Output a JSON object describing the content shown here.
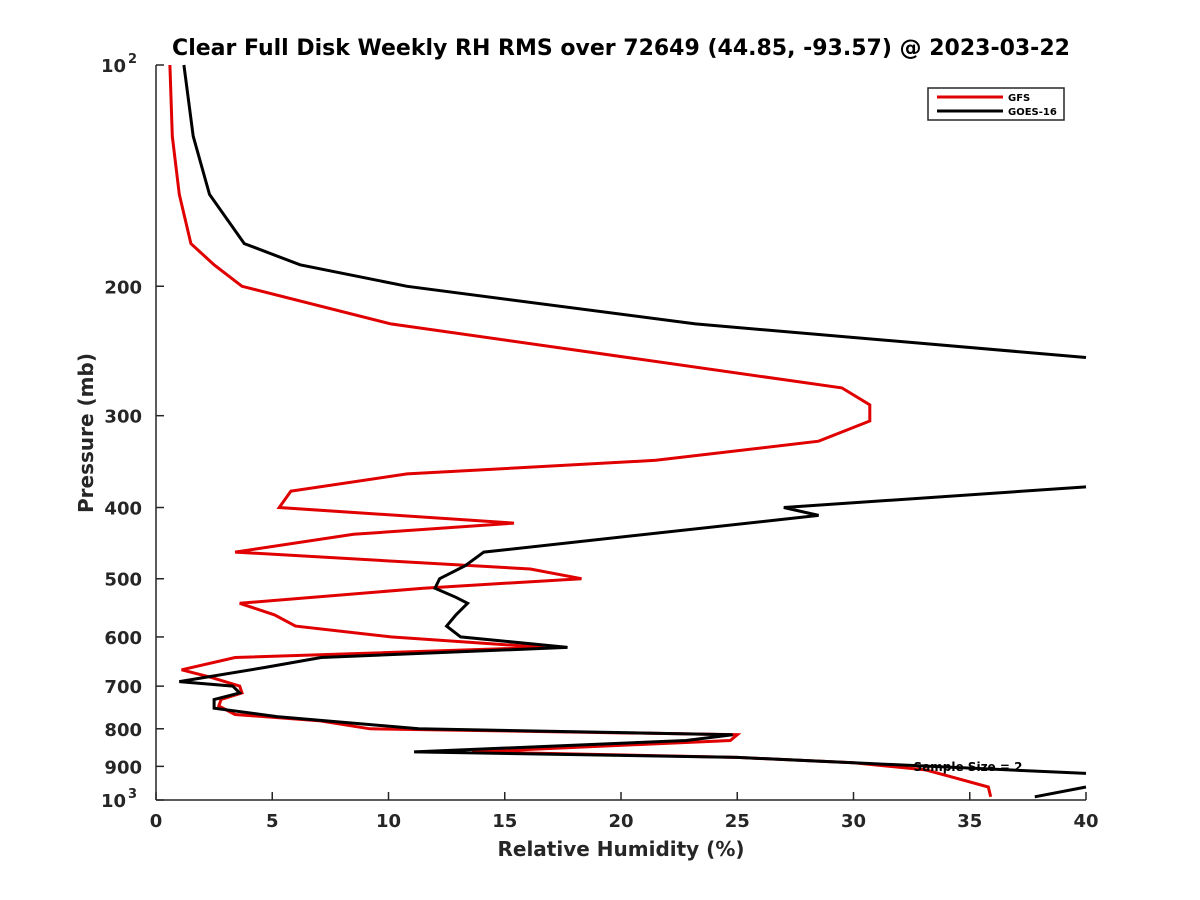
{
  "chart_data": {
    "type": "line",
    "title": "Clear Full Disk Weekly RH RMS over 72649 (44.85, -93.57) @ 2023-03-22",
    "xlabel": "Relative Humidity (%)",
    "ylabel": "Pressure (mb)",
    "xlim": [
      0,
      40
    ],
    "ylim": [
      100,
      1000
    ],
    "y_scale": "log",
    "y_reversed": true,
    "grid": false,
    "legend_position": "top-right",
    "x_ticks": [
      "0",
      "5",
      "10",
      "15",
      "20",
      "25",
      "30",
      "35",
      "40"
    ],
    "y_ticks": [
      {
        "value": 100,
        "base": "10",
        "exp": "2"
      },
      {
        "value": 200,
        "label": "200"
      },
      {
        "value": 300,
        "label": "300"
      },
      {
        "value": 400,
        "label": "400"
      },
      {
        "value": 500,
        "label": "500"
      },
      {
        "value": 600,
        "label": "600"
      },
      {
        "value": 700,
        "label": "700"
      },
      {
        "value": 800,
        "label": "800"
      },
      {
        "value": 900,
        "label": "900"
      },
      {
        "value": 1000,
        "base": "10",
        "exp": "3"
      }
    ],
    "annotation": "Sample Size = 2",
    "series": [
      {
        "name": "GFS",
        "color": "#e00000",
        "points": [
          [
            0.6,
            100
          ],
          [
            0.7,
            125
          ],
          [
            1.0,
            150
          ],
          [
            1.5,
            175
          ],
          [
            2.5,
            187
          ],
          [
            3.7,
            200
          ],
          [
            10.1,
            225
          ],
          [
            29.5,
            275
          ],
          [
            30.7,
            290
          ],
          [
            30.7,
            305
          ],
          [
            28.5,
            325
          ],
          [
            21.5,
            345
          ],
          [
            10.8,
            360
          ],
          [
            5.8,
            380
          ],
          [
            5.3,
            400
          ],
          [
            15.4,
            420
          ],
          [
            8.5,
            435
          ],
          [
            3.4,
            460
          ],
          [
            16.1,
            485
          ],
          [
            18.3,
            500
          ],
          [
            11.5,
            515
          ],
          [
            3.6,
            540
          ],
          [
            5.1,
            560
          ],
          [
            6.0,
            580
          ],
          [
            10.1,
            600
          ],
          [
            16.7,
            620
          ],
          [
            3.4,
            640
          ],
          [
            1.1,
            665
          ],
          [
            2.3,
            680
          ],
          [
            3.6,
            700
          ],
          [
            3.7,
            715
          ],
          [
            2.8,
            730
          ],
          [
            2.7,
            745
          ],
          [
            3.4,
            765
          ],
          [
            7.0,
            780
          ],
          [
            9.2,
            800
          ],
          [
            25.0,
            815
          ],
          [
            24.7,
            830
          ],
          [
            13.6,
            860
          ],
          [
            25.0,
            875
          ],
          [
            30.0,
            890
          ],
          [
            33.1,
            910
          ],
          [
            34.2,
            930
          ],
          [
            35.8,
            960
          ],
          [
            35.9,
            990
          ]
        ]
      },
      {
        "name": "GOES-16",
        "color": "#000000",
        "segments": [
          [
            [
              1.2,
              100
            ],
            [
              1.6,
              125
            ],
            [
              2.3,
              150
            ],
            [
              3.8,
              175
            ],
            [
              6.2,
              187
            ],
            [
              10.8,
              200
            ],
            [
              23.2,
              225
            ],
            [
              40,
              250
            ]
          ],
          [
            [
              40,
              375
            ],
            [
              27.0,
              400
            ],
            [
              28.5,
              410
            ],
            [
              14.1,
              460
            ],
            [
              13.3,
              480
            ],
            [
              12.2,
              500
            ],
            [
              12.0,
              515
            ],
            [
              12.9,
              530
            ],
            [
              13.4,
              540
            ],
            [
              12.9,
              560
            ],
            [
              12.5,
              580
            ],
            [
              13.1,
              600
            ],
            [
              17.7,
              620
            ],
            [
              7.1,
              640
            ],
            [
              4.7,
              660
            ],
            [
              1.0,
              690
            ],
            [
              3.3,
              700
            ],
            [
              3.6,
              715
            ],
            [
              2.5,
              730
            ],
            [
              2.5,
              750
            ],
            [
              5.2,
              770
            ],
            [
              11.3,
              800
            ],
            [
              24.8,
              815
            ],
            [
              22.8,
              830
            ],
            [
              11.1,
              860
            ],
            [
              25.0,
              875
            ],
            [
              30.0,
              890
            ],
            [
              40,
              920
            ]
          ],
          [
            [
              40,
              960
            ],
            [
              37.8,
              990
            ]
          ]
        ]
      }
    ]
  }
}
